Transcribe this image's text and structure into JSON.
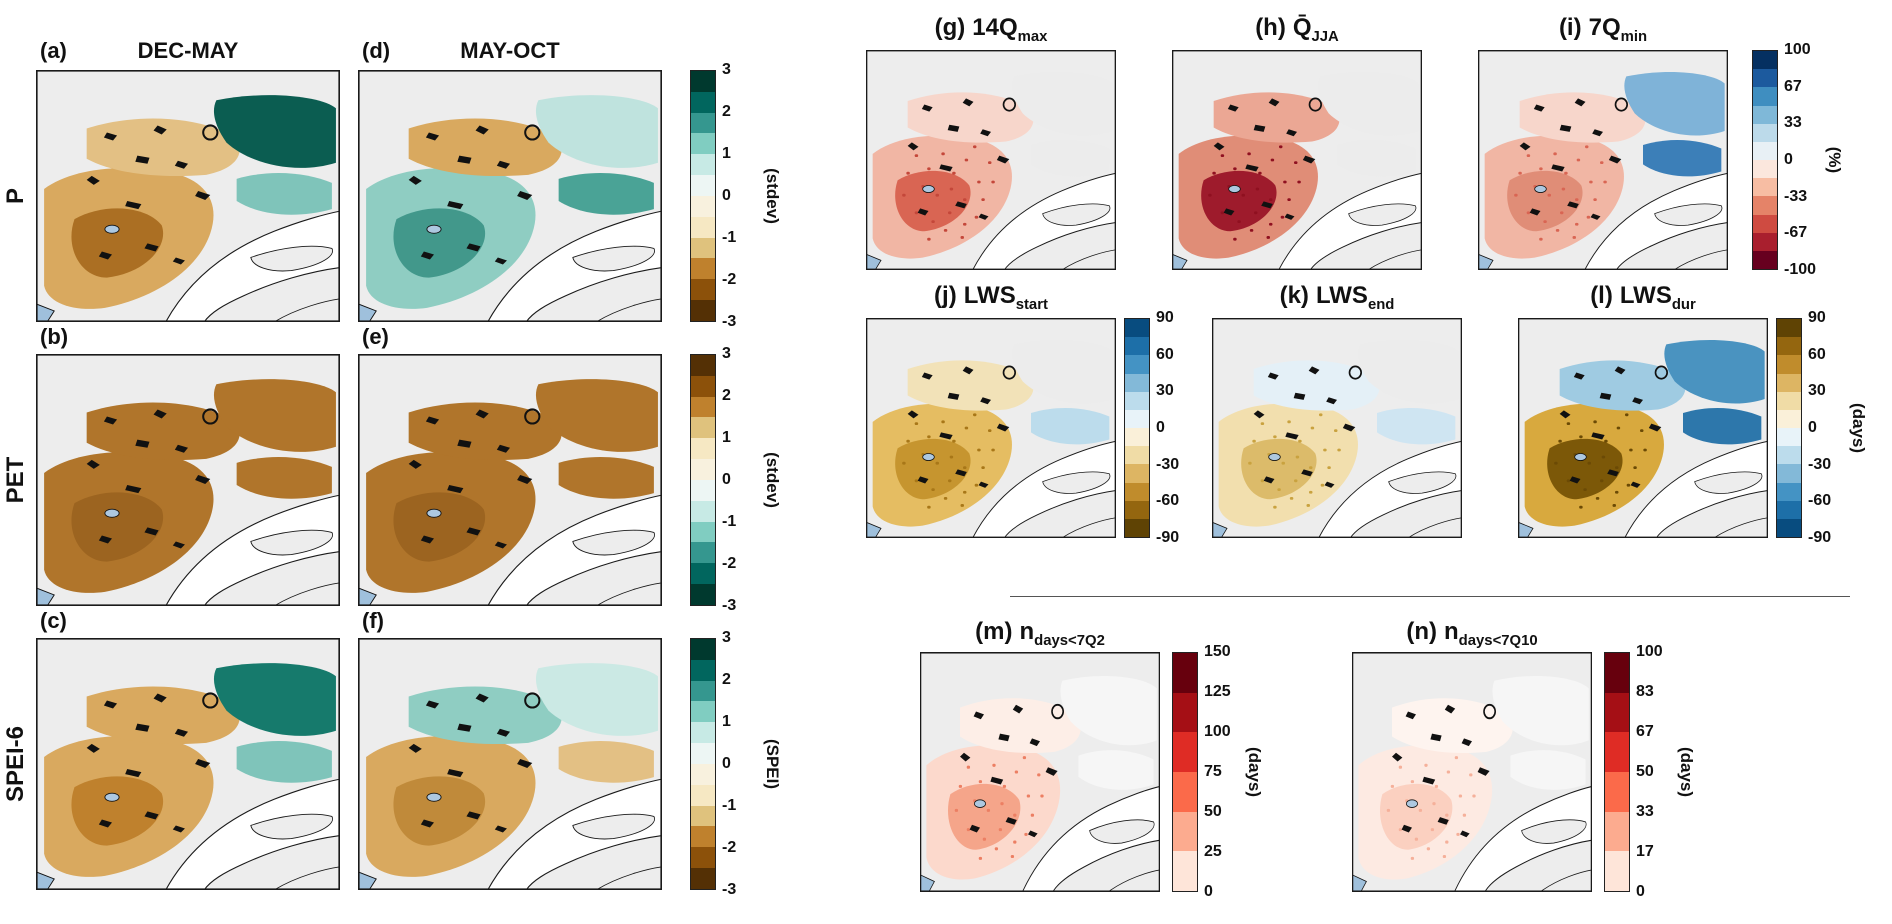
{
  "left": {
    "row_labels": [
      "P",
      "PET",
      "SPEI-6"
    ],
    "col_titles": [
      "DEC-MAY",
      "MAY-OCT"
    ]
  },
  "panels": {
    "a": {
      "tag": "(a)",
      "map": {
        "A": "#d9a95f",
        "B": "#ab6f23",
        "C": "#e3c084",
        "D": "#0b5d51",
        "E": "#7fc4ba",
        "dots": "none"
      }
    },
    "d": {
      "tag": "(d)",
      "map": {
        "A": "#8fcdc2",
        "B": "#42988b",
        "C": "#d9a95f",
        "D": "#bfe3de",
        "E": "#4aa396",
        "dots": "none"
      }
    },
    "b": {
      "tag": "(b)",
      "map": {
        "A": "#b0752b",
        "B": "#9c6420",
        "C": "#b0752b",
        "D": "#b0752b",
        "E": "#b0752b",
        "dots": "none"
      }
    },
    "e": {
      "tag": "(e)",
      "map": {
        "A": "#b0752b",
        "B": "#9c6420",
        "C": "#b0752b",
        "D": "#b0752b",
        "E": "#b0752b",
        "dots": "none"
      }
    },
    "c": {
      "tag": "(c)",
      "map": {
        "A": "#d9a95f",
        "B": "#bf812d",
        "C": "#d9a95f",
        "D": "#167a6c",
        "E": "#7fc4ba",
        "dots": "none"
      }
    },
    "f": {
      "tag": "(f)",
      "map": {
        "A": "#d9a95f",
        "B": "#c08a3a",
        "C": "#8fcdc2",
        "D": "#cbe9e4",
        "E": "#e3c084",
        "dots": "none"
      }
    },
    "g": {
      "tag": "(g)",
      "main": "14Q",
      "sub": "max",
      "map": {
        "A": "#f1b6a4",
        "B": "#d96553",
        "C": "#f7d6cb",
        "D": "#ececec",
        "E": "#ececec",
        "dots": "#c4473a"
      }
    },
    "h": {
      "tag": "(h)",
      "main": "Q̄",
      "sub": "JJA",
      "map": {
        "A": "#e08d77",
        "B": "#9e1b2c",
        "C": "#eba794",
        "D": "#ececec",
        "E": "#ececec",
        "dots": "#8f1020"
      }
    },
    "i": {
      "tag": "(i)",
      "main": "7Q",
      "sub": "min",
      "map": {
        "A": "#f1b6a4",
        "B": "#e08d77",
        "C": "#f7d6cb",
        "D": "#7fb3d8",
        "E": "#3c7fb8",
        "dots": "#d96553"
      }
    },
    "j": {
      "tag": "(j)",
      "main": "LWS",
      "sub": "start",
      "map": {
        "A": "#e5bd62",
        "B": "#c6952f",
        "C": "#f2e2b8",
        "D": "#ececec",
        "E": "#bcdcec",
        "dots": "#a87718"
      }
    },
    "k": {
      "tag": "(k)",
      "main": "LWS",
      "sub": "end",
      "map": {
        "A": "#f2dfae",
        "B": "#dcbb6a",
        "C": "#e4f0f7",
        "D": "#ececec",
        "E": "#cfe5f2",
        "dots": "#c9a23f"
      }
    },
    "l": {
      "tag": "(l)",
      "main": "LWS",
      "sub": "dur",
      "map": {
        "A": "#d8a93e",
        "B": "#7c5808",
        "C": "#9fcbe2",
        "D": "#4a93c0",
        "E": "#2d77ab",
        "dots": "#6b4a05"
      }
    },
    "m": {
      "tag": "(m)",
      "main": "n",
      "sub": "days<7Q2",
      "map": {
        "A": "#fcd9cc",
        "B": "#f5a58a",
        "C": "#fdeee7",
        "D": "#f6f6f6",
        "E": "#f6f6f6",
        "dots": "#ec7f63"
      }
    },
    "n": {
      "tag": "(n)",
      "main": "n",
      "sub": "days<7Q10",
      "map": {
        "A": "#fdeae2",
        "B": "#fbd0c0",
        "C": "#fef4ef",
        "D": "#f6f6f6",
        "E": "#f6f6f6",
        "dots": "#f5b09a"
      }
    }
  },
  "colorbars": {
    "stdev_p": {
      "label": "(stdev)",
      "ticks": [
        "3",
        "2",
        "1",
        "0",
        "-1",
        "-2",
        "-3"
      ],
      "colors": [
        "#00392e",
        "#01665e",
        "#35978f",
        "#80cdc1",
        "#c7eae5",
        "#edf6f4",
        "#f8f1de",
        "#f6e8c3",
        "#dfc27d",
        "#bf812d",
        "#8c510a",
        "#543005"
      ]
    },
    "stdev_pet": {
      "label": "(stdev)",
      "ticks": [
        "3",
        "2",
        "1",
        "0",
        "-1",
        "-2",
        "-3"
      ],
      "colors": [
        "#543005",
        "#8c510a",
        "#bf812d",
        "#dfc27d",
        "#f6e8c3",
        "#f8f1de",
        "#edf6f4",
        "#c7eae5",
        "#80cdc1",
        "#35978f",
        "#01665e",
        "#00392e"
      ]
    },
    "spei": {
      "label": "(SPEI)",
      "ticks": [
        "3",
        "2",
        "1",
        "0",
        "-1",
        "-2",
        "-3"
      ],
      "colors": [
        "#00392e",
        "#01665e",
        "#35978f",
        "#80cdc1",
        "#c7eae5",
        "#edf6f4",
        "#f8f1de",
        "#f6e8c3",
        "#dfc27d",
        "#bf812d",
        "#8c510a",
        "#543005"
      ]
    },
    "pct": {
      "label": "(%)",
      "ticks": [
        "100",
        "67",
        "33",
        "0",
        "-33",
        "-67",
        "-100"
      ],
      "colors": [
        "#053061",
        "#1c5a9e",
        "#3f8ec0",
        "#7fb8d8",
        "#bcdaea",
        "#e8f0f5",
        "#fbe7dd",
        "#f7bda3",
        "#e58368",
        "#cf4b41",
        "#a91f2e",
        "#67001f"
      ]
    },
    "days_start": {
      "label": "",
      "ticks": [
        "90",
        "60",
        "30",
        "0",
        "-30",
        "-60",
        "-90"
      ],
      "colors": [
        "#084c7f",
        "#1d6fa8",
        "#4493c4",
        "#83b9d8",
        "#bcdcec",
        "#e8f3f9",
        "#faf0d9",
        "#f0dca6",
        "#ddb563",
        "#c08c2c",
        "#94660f",
        "#5f4304"
      ]
    },
    "days_dur": {
      "label": "(days)",
      "ticks": [
        "90",
        "60",
        "30",
        "0",
        "-30",
        "-60",
        "-90"
      ],
      "colors": [
        "#5f4304",
        "#94660f",
        "#c08c2c",
        "#ddb563",
        "#f0dca6",
        "#faf0d9",
        "#e8f3f9",
        "#bcdcec",
        "#83b9d8",
        "#4493c4",
        "#1d6fa8",
        "#084c7f"
      ]
    },
    "days_m": {
      "label": "(days)",
      "ticks": [
        "150",
        "125",
        "100",
        "75",
        "50",
        "25",
        "0"
      ],
      "colors": [
        "#67000d",
        "#a50f15",
        "#df2c25",
        "#fb6a4a",
        "#fcab8f",
        "#fee5d9"
      ]
    },
    "days_n": {
      "label": "(days)",
      "ticks": [
        "100",
        "83",
        "67",
        "50",
        "33",
        "17",
        "0"
      ],
      "colors": [
        "#67000d",
        "#a50f15",
        "#df2c25",
        "#fb6a4a",
        "#fcab8f",
        "#fee5d9"
      ]
    }
  },
  "chart_data": [
    {
      "type": "heatmap",
      "id": "a",
      "variable": "P",
      "season": "DEC-MAY",
      "units": "stdev",
      "range": [
        -3,
        3
      ],
      "colorbar": "stdev_p",
      "pattern": "negative (brown) precipitation anomalies over the southwest; strong positive (dark teal) anomalies over the northeast"
    },
    {
      "type": "heatmap",
      "id": "d",
      "variable": "P",
      "season": "MAY-OCT",
      "units": "stdev",
      "range": [
        -3,
        3
      ],
      "colorbar": "stdev_p",
      "pattern": "mixed pattern: positive (teal) anomalies southwest and along the estuary, negative (tan) anomalies in the center-north"
    },
    {
      "type": "heatmap",
      "id": "b",
      "variable": "PET",
      "season": "DEC-MAY",
      "units": "stdev",
      "range": [
        -3,
        3
      ],
      "colorbar": "stdev_pet",
      "pattern": "uniformly positive PET anomalies (brown, ~+1 to +2) across the whole domain"
    },
    {
      "type": "heatmap",
      "id": "e",
      "variable": "PET",
      "season": "MAY-OCT",
      "units": "stdev",
      "range": [
        -3,
        3
      ],
      "colorbar": "stdev_pet",
      "pattern": "uniformly positive PET anomalies (brown) across the whole domain"
    },
    {
      "type": "heatmap",
      "id": "c",
      "variable": "SPEI-6",
      "season": "DEC-MAY",
      "units": "SPEI",
      "range": [
        -3,
        3
      ],
      "colorbar": "spei",
      "pattern": "drought (brown, negative SPEI) over south-west; wet (teal) over northeast"
    },
    {
      "type": "heatmap",
      "id": "f",
      "variable": "SPEI-6",
      "season": "MAY-OCT",
      "units": "SPEI",
      "range": [
        -3,
        3
      ],
      "colorbar": "spei",
      "pattern": "patchy drought (brown) southwest/center with wet (teal) bands north and east"
    },
    {
      "type": "heatmap",
      "id": "g",
      "variable": "14Qmax",
      "units": "%",
      "range": [
        -100,
        100
      ],
      "colorbar": "pct",
      "pattern": "moderate negative (light-to-mid red) changes in high flows over most gauged catchments west of the estuary"
    },
    {
      "type": "heatmap",
      "id": "h",
      "variable": "Q̄ JJA",
      "units": "%",
      "range": [
        -100,
        100
      ],
      "colorbar": "pct",
      "pattern": "strong negative (dark red) summer mean-flow anomalies, strongest in the south; few positive (blue) catchments in the west"
    },
    {
      "type": "heatmap",
      "id": "i",
      "variable": "7Qmin",
      "units": "%",
      "range": [
        -100,
        100
      ],
      "colorbar": "pct",
      "pattern": "negative (red) low-flow anomalies in south/west, positive (blue) anomalies in northeastern catchments"
    },
    {
      "type": "heatmap",
      "id": "j",
      "variable": "LWS start",
      "units": "days",
      "range": [
        -90,
        90
      ],
      "colorbar": "days_start",
      "pattern": "earlier low-water-season start (gold, negative) over most catchments; slightly later (light blue) in the north"
    },
    {
      "type": "heatmap",
      "id": "k",
      "variable": "LWS end",
      "units": "days",
      "range": [
        -90,
        90
      ],
      "colorbar": "days_start",
      "pattern": "weak anomalies: slightly earlier end (pale gold) in the center, slightly later (pale blue) around the edges"
    },
    {
      "type": "heatmap",
      "id": "l",
      "variable": "LWS duration",
      "units": "days",
      "range": [
        -90,
        90
      ],
      "colorbar": "days_dur",
      "pattern": "longer low-water season (brown/gold) in southwest, shorter (blue) in northeast"
    },
    {
      "type": "heatmap",
      "id": "m",
      "variable": "n days < 7Q2",
      "units": "days",
      "range": [
        0,
        150
      ],
      "colorbar": "days_m",
      "pattern": "mostly 0-50 days below 7Q2 (very light to light red), locally higher in central catchments"
    },
    {
      "type": "heatmap",
      "id": "n",
      "variable": "n days < 7Q10",
      "units": "days",
      "range": [
        0,
        100
      ],
      "colorbar": "days_n",
      "pattern": "mostly near 0 days below 7Q10 (very pale pink) across all catchments"
    }
  ]
}
